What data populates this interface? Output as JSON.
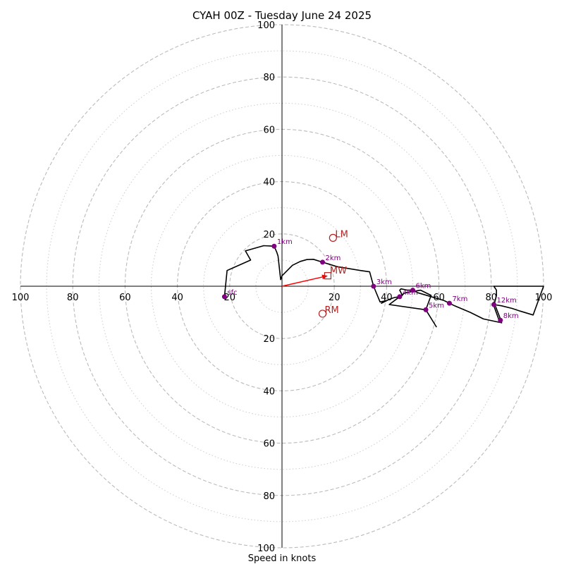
{
  "chart_data": {
    "type": "hodograph",
    "title": "CYAH 00Z - Tuesday June 24 2025",
    "xlabel": "Speed in knots",
    "range": [
      -100,
      100
    ],
    "dashed_rings": [
      20,
      40,
      60,
      80,
      100
    ],
    "dotted_rings": [
      10,
      30,
      50,
      70,
      90
    ],
    "tick_labels": {
      "x": [
        {
          "value": -100,
          "label": "100"
        },
        {
          "value": -80,
          "label": "80"
        },
        {
          "value": -60,
          "label": "60"
        },
        {
          "value": -40,
          "label": "40"
        },
        {
          "value": -20,
          "label": "20"
        },
        {
          "value": 20,
          "label": "20"
        },
        {
          "value": 40,
          "label": "40"
        },
        {
          "value": 60,
          "label": "60"
        },
        {
          "value": 80,
          "label": "80"
        },
        {
          "value": 100,
          "label": "100"
        }
      ],
      "y": [
        {
          "value": 100,
          "label": "100"
        },
        {
          "value": 80,
          "label": "80"
        },
        {
          "value": 60,
          "label": "60"
        },
        {
          "value": 40,
          "label": "40"
        },
        {
          "value": 20,
          "label": "20"
        },
        {
          "value": -20,
          "label": "20"
        },
        {
          "value": -40,
          "label": "40"
        },
        {
          "value": -60,
          "label": "60"
        },
        {
          "value": -80,
          "label": "80"
        },
        {
          "value": -100,
          "label": "100"
        }
      ]
    },
    "hodograph_trace": [
      [
        -22,
        -4
      ],
      [
        -21,
        6
      ],
      [
        -12,
        10
      ],
      [
        -14,
        13.5
      ],
      [
        -7,
        15.5
      ],
      [
        -3,
        15.3
      ],
      [
        -2,
        13
      ],
      [
        -1.5,
        11.5
      ],
      [
        -0.5,
        2.5
      ],
      [
        0,
        4
      ],
      [
        4,
        8
      ],
      [
        7,
        9.5
      ],
      [
        9.5,
        10.2
      ],
      [
        12,
        10.3
      ],
      [
        15.5,
        9.2
      ],
      [
        21,
        7.5
      ],
      [
        30,
        6
      ],
      [
        33.5,
        5.5
      ],
      [
        35,
        0
      ],
      [
        37.5,
        -6
      ],
      [
        40,
        -5.5
      ],
      [
        38,
        -6.5
      ],
      [
        41,
        -5
      ],
      [
        43,
        -4.3
      ],
      [
        45,
        -4
      ],
      [
        47,
        -2.5
      ],
      [
        53,
        -1.5
      ],
      [
        57,
        -3.5
      ],
      [
        55,
        -9
      ],
      [
        59,
        -15.5
      ],
      [
        55,
        -9
      ],
      [
        41,
        -7
      ],
      [
        45,
        -4
      ],
      [
        46,
        -3.5
      ],
      [
        45,
        -1.5
      ],
      [
        45.5,
        -1
      ],
      [
        48,
        -1.5
      ],
      [
        50,
        -1.5
      ],
      [
        52,
        -2.5
      ],
      [
        57,
        -4
      ],
      [
        62,
        -5.5
      ],
      [
        66,
        -7.5
      ],
      [
        72,
        -10
      ],
      [
        77,
        -12.5
      ],
      [
        84,
        -14
      ],
      [
        83,
        -13
      ],
      [
        81,
        -7.5
      ],
      [
        82,
        -3.5
      ],
      [
        82,
        -1.5
      ],
      [
        81,
        0
      ],
      [
        100,
        0
      ],
      [
        100,
        0
      ],
      [
        96,
        -11
      ],
      [
        91,
        -9.5
      ],
      [
        88,
        -8.5
      ],
      [
        84,
        -7.5
      ],
      [
        81,
        -7
      ],
      [
        81,
        -6
      ],
      [
        83.5,
        -12.5
      ]
    ],
    "height_markers": [
      {
        "label": "sfc",
        "u": -22,
        "v": -4
      },
      {
        "label": "1km",
        "u": -3,
        "v": 15.3
      },
      {
        "label": "2km",
        "u": 15.5,
        "v": 9.2
      },
      {
        "label": "3km",
        "u": 35,
        "v": 0
      },
      {
        "label": "4km",
        "u": 45,
        "v": -4
      },
      {
        "label": "5km",
        "u": 55,
        "v": -9
      },
      {
        "label": "6km",
        "u": 50,
        "v": -1.5
      },
      {
        "label": "7km",
        "u": 64,
        "v": -6.5
      },
      {
        "label": "8km",
        "u": 83.5,
        "v": -13
      },
      {
        "label": "12km",
        "u": 81,
        "v": -7
      }
    ],
    "storm_motion": {
      "LM": {
        "label": "LM",
        "u": 19.5,
        "v": 18.5
      },
      "RM": {
        "label": "RM",
        "u": 15.5,
        "v": -10.5
      },
      "MW": {
        "label": "MW",
        "u": 17.5,
        "v": 4
      }
    },
    "colors": {
      "trace": "#000000",
      "markers": "#800080",
      "storm": "#b22222",
      "mean_wind_arrow": "#ff0000",
      "rings": "#bbbbbb"
    }
  }
}
